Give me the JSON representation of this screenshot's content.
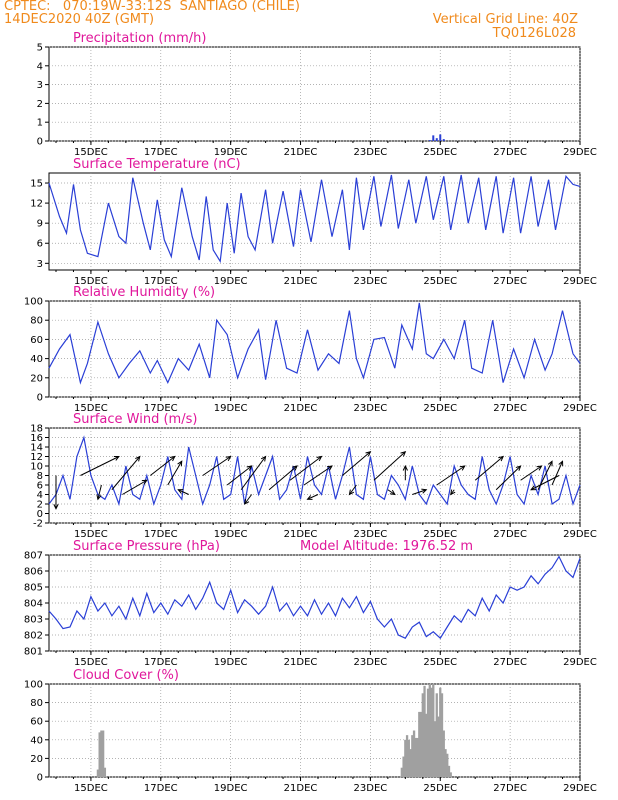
{
  "header": {
    "line1_left": "CPTEC:   070:19W-33:12S  SANTIAGO (CHILE)",
    "line2_left": "14DEC2020 40Z (GMT)",
    "line1_right": "Vertical Grid Line: 40Z",
    "line2_right": "TQ0126L028"
  },
  "colors": {
    "header": "#f08a1c",
    "title": "#e0179b",
    "line": "#2a3fd6",
    "cloud": "#a0a0a0",
    "grid": "#9a9a9a"
  },
  "date_labels": [
    "15DEC",
    "17DEC",
    "19DEC",
    "21DEC",
    "23DEC",
    "25DEC",
    "27DEC",
    "29DEC"
  ],
  "chart_data": [
    {
      "type": "bar",
      "title": "Precipitation (mm/h)",
      "ylim": [
        0,
        5
      ],
      "yticks": [
        "0",
        "1",
        "2",
        "3",
        "4",
        "5"
      ],
      "x_days": [
        24.7,
        24.8,
        24.9,
        25.0,
        25.1
      ],
      "values": [
        0.05,
        0.3,
        0.15,
        0.35,
        0.1
      ]
    },
    {
      "type": "line",
      "title": "Surface Temperature (nC)",
      "ylim": [
        2,
        16.5
      ],
      "yticks": [
        "3",
        "6",
        "9",
        "12",
        "15"
      ],
      "series": [
        {
          "x_days": [
            13.8,
            14.1,
            14.3,
            14.5,
            14.7,
            14.9,
            15.2,
            15.5,
            15.8,
            16.0,
            16.2,
            16.5,
            16.7,
            16.9,
            17.1,
            17.3,
            17.6,
            17.9,
            18.1,
            18.3,
            18.5,
            18.7,
            18.9,
            19.1,
            19.3,
            19.5,
            19.7,
            20.0,
            20.2,
            20.5,
            20.8,
            21.0,
            21.3,
            21.6,
            21.9,
            22.2,
            22.4,
            22.6,
            22.8,
            23.1,
            23.3,
            23.6,
            23.8,
            24.1,
            24.3,
            24.6,
            24.8,
            25.1,
            25.3,
            25.6,
            25.8,
            26.1,
            26.3,
            26.6,
            26.8,
            27.1,
            27.3,
            27.6,
            27.8,
            28.1,
            28.3,
            28.6,
            28.8,
            29.0
          ],
          "values": [
            15,
            10,
            7.5,
            14.8,
            8,
            4.5,
            4,
            12,
            7,
            6,
            15.8,
            9,
            5,
            12.5,
            6.5,
            4,
            14.3,
            7,
            3.5,
            13,
            5,
            3.3,
            12,
            4.5,
            13.5,
            7,
            5,
            14,
            6,
            13.8,
            5.5,
            14,
            6.2,
            15.5,
            7,
            14,
            5,
            15.8,
            8,
            16,
            8.5,
            16.2,
            8.2,
            15.5,
            9,
            16,
            9.5,
            16,
            8,
            16.2,
            9,
            15.8,
            8,
            16,
            7.5,
            15.8,
            7.5,
            16,
            8.5,
            15.5,
            8,
            16,
            14.8,
            14.5
          ]
        }
      ]
    },
    {
      "type": "line",
      "title": "Relative Humidity (%)",
      "ylim": [
        0,
        100
      ],
      "yticks": [
        "0",
        "20",
        "40",
        "60",
        "80",
        "100"
      ],
      "series": [
        {
          "x_days": [
            13.8,
            14.1,
            14.4,
            14.7,
            14.9,
            15.2,
            15.5,
            15.8,
            16.1,
            16.4,
            16.7,
            16.9,
            17.2,
            17.5,
            17.8,
            18.1,
            18.4,
            18.6,
            18.9,
            19.2,
            19.5,
            19.8,
            20.0,
            20.3,
            20.6,
            20.9,
            21.2,
            21.5,
            21.8,
            22.1,
            22.4,
            22.6,
            22.8,
            23.1,
            23.4,
            23.7,
            23.9,
            24.2,
            24.4,
            24.6,
            24.8,
            25.1,
            25.4,
            25.7,
            25.9,
            26.2,
            26.5,
            26.8,
            27.1,
            27.4,
            27.7,
            28.0,
            28.2,
            28.5,
            28.8,
            29.0
          ],
          "values": [
            30,
            50,
            65,
            15,
            35,
            78,
            45,
            20,
            35,
            48,
            25,
            38,
            15,
            40,
            28,
            55,
            20,
            80,
            65,
            20,
            50,
            70,
            18,
            80,
            30,
            25,
            70,
            28,
            45,
            35,
            90,
            40,
            20,
            60,
            62,
            30,
            75,
            50,
            98,
            45,
            40,
            60,
            40,
            80,
            30,
            25,
            80,
            15,
            50,
            20,
            60,
            28,
            45,
            90,
            45,
            35
          ]
        }
      ]
    },
    {
      "type": "line",
      "title": "Surface Wind (m/s)",
      "ylim": [
        -2,
        18
      ],
      "yticks": [
        "-2",
        "0",
        "2",
        "4",
        "6",
        "8",
        "10",
        "12",
        "14",
        "16",
        "18"
      ],
      "series": [
        {
          "x_days": [
            13.8,
            14.0,
            14.2,
            14.4,
            14.6,
            14.8,
            15.0,
            15.2,
            15.4,
            15.6,
            15.8,
            16.0,
            16.2,
            16.4,
            16.6,
            16.8,
            17.0,
            17.2,
            17.4,
            17.6,
            17.8,
            18.0,
            18.2,
            18.4,
            18.6,
            18.8,
            19.0,
            19.2,
            19.4,
            19.6,
            19.8,
            20.0,
            20.2,
            20.4,
            20.6,
            20.8,
            21.0,
            21.2,
            21.4,
            21.6,
            21.8,
            22.0,
            22.2,
            22.4,
            22.6,
            22.8,
            23.0,
            23.2,
            23.4,
            23.6,
            23.8,
            24.0,
            24.2,
            24.4,
            24.6,
            24.8,
            25.0,
            25.2,
            25.4,
            25.6,
            25.8,
            26.0,
            26.2,
            26.4,
            26.6,
            26.8,
            27.0,
            27.2,
            27.4,
            27.6,
            27.8,
            28.0,
            28.2,
            28.4,
            28.6,
            28.8,
            29.0
          ],
          "values": [
            2,
            4,
            8,
            3,
            12,
            16,
            8,
            4,
            3,
            6,
            2,
            10,
            4,
            3,
            8,
            2,
            6,
            12,
            5,
            3,
            14,
            8,
            2,
            6,
            12,
            3,
            4,
            12,
            2,
            10,
            4,
            8,
            12,
            3,
            5,
            10,
            3,
            12,
            6,
            4,
            10,
            3,
            8,
            14,
            4,
            3,
            12,
            4,
            3,
            8,
            6,
            3,
            10,
            4,
            2,
            6,
            4,
            2,
            10,
            6,
            4,
            3,
            12,
            5,
            2,
            6,
            12,
            4,
            2,
            8,
            4,
            10,
            2,
            3,
            8,
            2,
            6
          ]
        }
      ],
      "arrows_label": "wind direction arrows"
    },
    {
      "type": "line",
      "title": "Surface Pressure (hPa)",
      "annotation": "Model Altitude: 1976.52  m",
      "ylim": [
        801,
        807
      ],
      "yticks": [
        "801",
        "802",
        "803",
        "804",
        "805",
        "806",
        "807"
      ],
      "series": [
        {
          "x_days": [
            13.8,
            14.0,
            14.2,
            14.4,
            14.6,
            14.8,
            15.0,
            15.2,
            15.4,
            15.6,
            15.8,
            16.0,
            16.2,
            16.4,
            16.6,
            16.8,
            17.0,
            17.2,
            17.4,
            17.6,
            17.8,
            18.0,
            18.2,
            18.4,
            18.6,
            18.8,
            19.0,
            19.2,
            19.4,
            19.6,
            19.8,
            20.0,
            20.2,
            20.4,
            20.6,
            20.8,
            21.0,
            21.2,
            21.4,
            21.6,
            21.8,
            22.0,
            22.2,
            22.4,
            22.6,
            22.8,
            23.0,
            23.2,
            23.4,
            23.6,
            23.8,
            24.0,
            24.2,
            24.4,
            24.6,
            24.8,
            25.0,
            25.2,
            25.4,
            25.6,
            25.8,
            26.0,
            26.2,
            26.4,
            26.6,
            26.8,
            27.0,
            27.2,
            27.4,
            27.6,
            27.8,
            28.0,
            28.2,
            28.4,
            28.6,
            28.8,
            29.0
          ],
          "values": [
            803.5,
            803,
            802.4,
            802.5,
            803.5,
            803,
            804.4,
            803.5,
            804,
            803.2,
            803.8,
            803,
            804.3,
            803.2,
            804.6,
            803.4,
            804,
            803.3,
            804.2,
            803.8,
            804.5,
            803.6,
            804.3,
            805.3,
            804,
            803.6,
            804.8,
            803.4,
            804.2,
            803.8,
            803.3,
            803.8,
            805,
            803.5,
            804,
            803.2,
            803.8,
            803.2,
            804.2,
            803.3,
            804,
            803.2,
            804.3,
            803.7,
            804.4,
            803.4,
            804.1,
            803,
            802.5,
            803,
            802,
            801.8,
            802.5,
            802.8,
            801.9,
            802.2,
            801.8,
            802.5,
            803.2,
            802.8,
            803.6,
            803.2,
            804.3,
            803.5,
            804.5,
            804,
            805,
            804.8,
            805,
            805.7,
            805.2,
            805.8,
            806.2,
            806.9,
            806,
            805.6,
            806.8
          ]
        }
      ]
    },
    {
      "type": "bar",
      "title": "Cloud Cover (%)",
      "ylim": [
        0,
        100
      ],
      "yticks": [
        "0",
        "20",
        "40",
        "60",
        "80",
        "100"
      ],
      "x_days": [
        15.2,
        15.25,
        15.3,
        15.35,
        15.4,
        23.9,
        23.95,
        24.0,
        24.05,
        24.1,
        24.15,
        24.2,
        24.25,
        24.3,
        24.35,
        24.4,
        24.45,
        24.5,
        24.55,
        24.6,
        24.65,
        24.7,
        24.75,
        24.8,
        24.85,
        24.9,
        24.95,
        25.0,
        25.05,
        25.1,
        25.15,
        25.2,
        25.25,
        25.3
      ],
      "values": [
        8,
        48,
        50,
        50,
        10,
        10,
        22,
        40,
        45,
        40,
        30,
        45,
        50,
        42,
        42,
        70,
        70,
        90,
        98,
        68,
        95,
        100,
        96,
        100,
        60,
        90,
        65,
        96,
        90,
        50,
        30,
        25,
        12,
        5
      ]
    }
  ]
}
